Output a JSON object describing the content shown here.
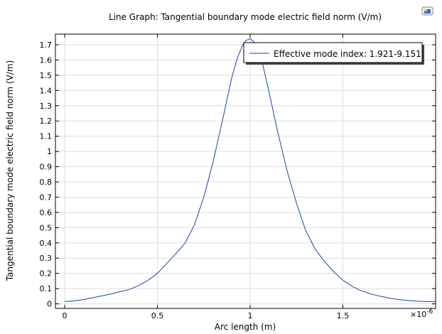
{
  "chart_data": {
    "type": "line",
    "title": "Line Graph: Tangential boundary mode electric field norm (V/m)",
    "xlabel": "Arc length (m)",
    "ylabel": "Tangential boundary mode electric field norm (V/m)",
    "x_scale_label": "×10",
    "x_scale_exponent": "-6",
    "xlim": [
      -0.05,
      2.0
    ],
    "ylim": [
      -0.03,
      1.77
    ],
    "x_ticks": [
      0,
      0.5,
      1,
      1.5
    ],
    "x_tick_labels": [
      "0",
      "0.5",
      "1",
      "1.5"
    ],
    "y_ticks": [
      0,
      0.1,
      0.2,
      0.3,
      0.4,
      0.5,
      0.6,
      0.7,
      0.8,
      0.9,
      1,
      1.1,
      1.2,
      1.3,
      1.4,
      1.5,
      1.6,
      1.7
    ],
    "y_tick_labels": [
      "0",
      "0.1",
      "0.2",
      "0.3",
      "0.4",
      "0.5",
      "0.6",
      "0.7",
      "0.8",
      "0.9",
      "1",
      "1.1",
      "1.2",
      "1.3",
      "1.4",
      "1.5",
      "1.6",
      "1.7"
    ],
    "grid": true,
    "legend_position": "top-right",
    "series": [
      {
        "name": "Effective mode index: 1.921-9.151",
        "color": "#1a3fb5",
        "x": [
          0,
          0.05,
          0.1,
          0.15,
          0.2,
          0.25,
          0.3,
          0.35,
          0.4,
          0.45,
          0.5,
          0.55,
          0.6,
          0.65,
          0.7,
          0.75,
          0.8,
          0.85,
          0.9,
          0.93,
          0.96,
          0.98,
          1.0,
          1.02,
          1.04,
          1.07,
          1.1,
          1.15,
          1.2,
          1.25,
          1.3,
          1.35,
          1.4,
          1.45,
          1.5,
          1.55,
          1.6,
          1.65,
          1.7,
          1.75,
          1.8,
          1.85,
          1.9,
          1.95,
          2.0
        ],
        "y": [
          0.015,
          0.02,
          0.028,
          0.04,
          0.052,
          0.065,
          0.08,
          0.095,
          0.12,
          0.155,
          0.2,
          0.265,
          0.33,
          0.4,
          0.52,
          0.7,
          0.93,
          1.2,
          1.48,
          1.61,
          1.7,
          1.73,
          1.74,
          1.72,
          1.67,
          1.56,
          1.4,
          1.12,
          0.87,
          0.66,
          0.48,
          0.36,
          0.28,
          0.21,
          0.155,
          0.115,
          0.085,
          0.065,
          0.05,
          0.038,
          0.028,
          0.022,
          0.017,
          0.015,
          0.014
        ]
      }
    ]
  },
  "ui": {
    "corner_icon": "image-icon"
  }
}
